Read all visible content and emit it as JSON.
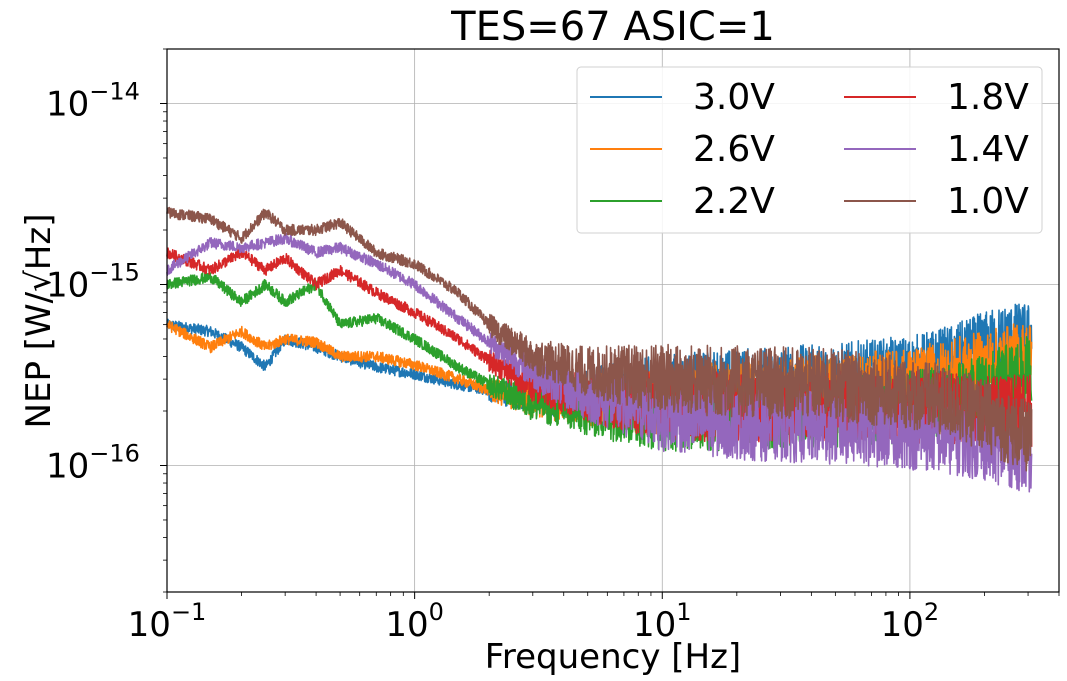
{
  "chart_data": {
    "type": "line",
    "title": "TES=67 ASIC=1",
    "xlabel": "Frequency [Hz]",
    "ylabel": "NEP [W/√Hz]",
    "x_scale": "log",
    "y_scale": "log",
    "xlim": [
      0.1,
      400
    ],
    "ylim": [
      2e-17,
      2e-14
    ],
    "grid": true,
    "legend_position": "top-right",
    "legend_columns": 2,
    "x_ticks": [
      {
        "value": 0.1,
        "base": "10",
        "exp": "−1"
      },
      {
        "value": 1,
        "base": "10",
        "exp": "0"
      },
      {
        "value": 10,
        "base": "10",
        "exp": "1"
      },
      {
        "value": 100,
        "base": "10",
        "exp": "2"
      }
    ],
    "y_ticks": [
      {
        "value": 1e-16,
        "base": "10",
        "exp": "−16"
      },
      {
        "value": 1e-15,
        "base": "10",
        "exp": "−15"
      },
      {
        "value": 1e-14,
        "base": "10",
        "exp": "−14"
      }
    ],
    "series": [
      {
        "name": "3.0V",
        "color": "#1f77b4",
        "x": [
          0.1,
          0.15,
          0.2,
          0.25,
          0.3,
          0.4,
          0.5,
          0.7,
          1.0,
          1.5,
          2,
          3,
          5,
          10,
          20,
          50,
          100,
          150,
          200,
          250,
          310
        ],
        "y": [
          6e-16,
          5.5e-16,
          4.5e-16,
          3.5e-16,
          5e-16,
          4.5e-16,
          4e-16,
          3.5e-16,
          3.2e-16,
          2.8e-16,
          2.6e-16,
          2.4e-16,
          2.5e-16,
          2.6e-16,
          2.8e-16,
          3e-16,
          3.3e-16,
          3.8e-16,
          4.5e-16,
          5e-16,
          5e-16
        ]
      },
      {
        "name": "2.6V",
        "color": "#ff7f0e",
        "x": [
          0.1,
          0.15,
          0.2,
          0.25,
          0.3,
          0.4,
          0.5,
          0.7,
          1.0,
          1.5,
          2,
          3,
          5,
          10,
          20,
          50,
          100,
          150,
          200,
          250,
          310
        ],
        "y": [
          6e-16,
          4.5e-16,
          5.5e-16,
          4.5e-16,
          5e-16,
          4.8e-16,
          4e-16,
          4e-16,
          3.6e-16,
          3e-16,
          2.6e-16,
          2.3e-16,
          2.3e-16,
          2.3e-16,
          2.4e-16,
          2.6e-16,
          2.8e-16,
          3.2e-16,
          3.5e-16,
          3.8e-16,
          4e-16
        ]
      },
      {
        "name": "2.2V",
        "color": "#2ca02c",
        "x": [
          0.1,
          0.15,
          0.2,
          0.25,
          0.3,
          0.4,
          0.5,
          0.7,
          1.0,
          1.5,
          2,
          3,
          5,
          10,
          20,
          50,
          100,
          150,
          200,
          250,
          310
        ],
        "y": [
          1e-15,
          1.1e-15,
          8e-16,
          1e-15,
          8e-16,
          1e-15,
          6e-16,
          6.5e-16,
          5e-16,
          3.5e-16,
          2.8e-16,
          2.2e-16,
          2e-16,
          1.9e-16,
          1.9e-16,
          2e-16,
          2.1e-16,
          2.3e-16,
          2.6e-16,
          3e-16,
          3.4e-16
        ]
      },
      {
        "name": "1.8V",
        "color": "#d62728",
        "x": [
          0.1,
          0.15,
          0.2,
          0.25,
          0.3,
          0.4,
          0.5,
          0.7,
          1.0,
          1.5,
          2,
          3,
          5,
          10,
          20,
          50,
          100,
          150,
          200,
          250,
          310
        ],
        "y": [
          1.5e-15,
          1.2e-15,
          1.5e-15,
          1.2e-15,
          1.4e-15,
          1e-15,
          1.2e-15,
          9e-16,
          7e-16,
          5e-16,
          3.8e-16,
          2.8e-16,
          2.4e-16,
          2.2e-16,
          2.1e-16,
          2.1e-16,
          2.1e-16,
          2.1e-16,
          2e-16,
          2e-16,
          2e-16
        ]
      },
      {
        "name": "1.4V",
        "color": "#9467bd",
        "x": [
          0.1,
          0.15,
          0.2,
          0.25,
          0.3,
          0.4,
          0.5,
          0.7,
          1.0,
          1.5,
          2,
          3,
          5,
          10,
          20,
          50,
          100,
          150,
          200,
          250,
          310
        ],
        "y": [
          1.2e-15,
          1.7e-15,
          1.6e-15,
          1.7e-15,
          1.8e-15,
          1.5e-15,
          1.6e-15,
          1.3e-15,
          1e-15,
          6.5e-16,
          4.8e-16,
          3.3e-16,
          2.4e-16,
          1.9e-16,
          1.7e-16,
          1.6e-16,
          1.5e-16,
          1.4e-16,
          1.3e-16,
          1.2e-16,
          1.1e-16
        ]
      },
      {
        "name": "1.0V",
        "color": "#8c564b",
        "x": [
          0.1,
          0.15,
          0.2,
          0.25,
          0.3,
          0.4,
          0.5,
          0.7,
          1.0,
          1.5,
          2,
          3,
          5,
          10,
          20,
          50,
          100,
          150,
          200,
          250,
          310
        ],
        "y": [
          2.5e-15,
          2.3e-15,
          1.8e-15,
          2.5e-15,
          2e-15,
          2e-15,
          2.2e-15,
          1.5e-15,
          1.3e-15,
          9e-16,
          6e-16,
          4e-16,
          3.3e-16,
          3e-16,
          2.9e-16,
          2.8e-16,
          2.5e-16,
          2.2e-16,
          1.9e-16,
          1.6e-16,
          1.4e-16
        ]
      }
    ]
  }
}
